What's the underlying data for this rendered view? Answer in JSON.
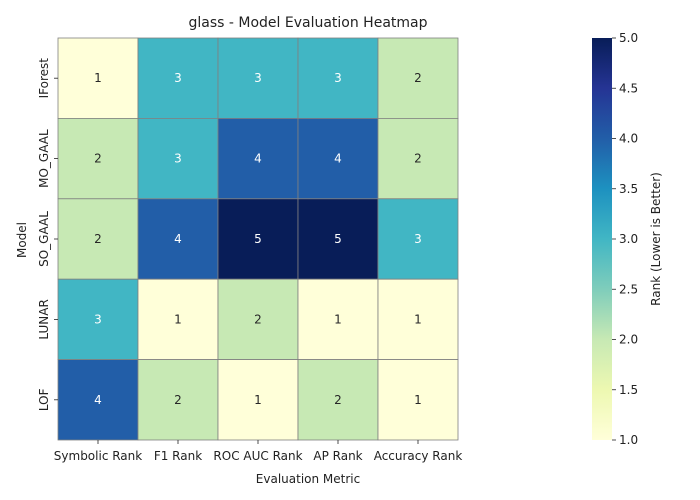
{
  "chart_data": {
    "type": "heatmap",
    "title": "glass - Model Evaluation Heatmap",
    "xlabel": "Evaluation Metric",
    "ylabel": "Model",
    "x_categories": [
      "Symbolic Rank",
      "F1 Rank",
      "ROC AUC Rank",
      "AP Rank",
      "Accuracy Rank"
    ],
    "y_categories": [
      "IForest",
      "MO_GAAL",
      "SO_GAAL",
      "LUNAR",
      "LOF"
    ],
    "values": [
      [
        1,
        3,
        3,
        3,
        2
      ],
      [
        2,
        3,
        4,
        4,
        2
      ],
      [
        2,
        4,
        5,
        5,
        3
      ],
      [
        3,
        1,
        2,
        1,
        1
      ],
      [
        4,
        2,
        1,
        2,
        1
      ]
    ],
    "colorbar": {
      "label": "Rank (Lower is Better)",
      "range": [
        1,
        5
      ],
      "ticks": [
        "1.0",
        "1.5",
        "2.0",
        "2.5",
        "3.0",
        "3.5",
        "4.0",
        "4.5",
        "5.0"
      ],
      "colormap": "YlGnBu",
      "colors": [
        "#ffffd9",
        "#edf8b1",
        "#c7e9b4",
        "#7fcdbb",
        "#41b6c4",
        "#1d91c0",
        "#225ea8",
        "#253494",
        "#081d58"
      ]
    },
    "cell_border_color": "#808080",
    "grid": false
  }
}
